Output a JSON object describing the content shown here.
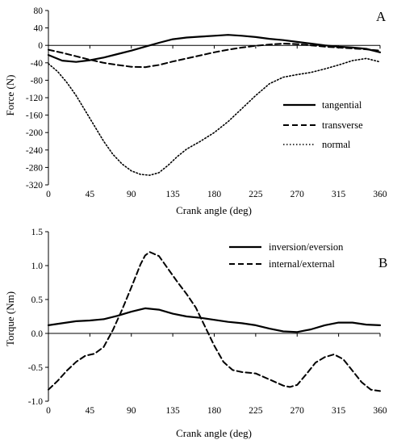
{
  "chart_data": [
    {
      "panel_label": "A",
      "type": "line",
      "xlabel": "Crank angle (deg)",
      "ylabel": "Force (N)",
      "xlim": [
        0,
        360
      ],
      "ylim": [
        -320,
        80
      ],
      "xticks": [
        0,
        45,
        90,
        135,
        180,
        225,
        270,
        315,
        360
      ],
      "yticks": [
        80,
        40,
        0,
        -40,
        -80,
        -120,
        -160,
        -200,
        -240,
        -280,
        -320
      ],
      "legend_position": "right",
      "series": [
        {
          "name": "tangential",
          "style": "solid",
          "x": [
            0,
            15,
            30,
            45,
            60,
            75,
            90,
            105,
            120,
            135,
            150,
            165,
            180,
            195,
            210,
            225,
            240,
            255,
            270,
            285,
            300,
            315,
            330,
            345,
            360
          ],
          "y": [
            -22,
            -35,
            -38,
            -34,
            -28,
            -20,
            -12,
            -3,
            6,
            14,
            18,
            20,
            22,
            24,
            22,
            19,
            15,
            12,
            8,
            4,
            0,
            -3,
            -5,
            -8,
            -16
          ]
        },
        {
          "name": "transverse",
          "style": "dashed",
          "x": [
            0,
            15,
            30,
            45,
            60,
            75,
            90,
            105,
            120,
            135,
            150,
            165,
            180,
            195,
            210,
            225,
            240,
            255,
            270,
            285,
            300,
            315,
            330,
            345,
            360
          ],
          "y": [
            -10,
            -17,
            -25,
            -33,
            -40,
            -45,
            -49,
            -50,
            -45,
            -37,
            -30,
            -23,
            -16,
            -10,
            -5,
            -1,
            2,
            4,
            3,
            0,
            -3,
            -5,
            -7,
            -9,
            -12
          ]
        },
        {
          "name": "normal",
          "style": "dotted",
          "x": [
            0,
            10,
            20,
            30,
            40,
            50,
            60,
            70,
            80,
            90,
            100,
            110,
            120,
            130,
            140,
            150,
            165,
            180,
            195,
            210,
            225,
            240,
            255,
            270,
            285,
            300,
            315,
            330,
            345,
            360
          ],
          "y": [
            -42,
            -60,
            -85,
            -115,
            -150,
            -185,
            -220,
            -250,
            -272,
            -288,
            -296,
            -298,
            -292,
            -275,
            -255,
            -238,
            -220,
            -200,
            -175,
            -145,
            -115,
            -88,
            -73,
            -67,
            -62,
            -54,
            -45,
            -35,
            -30,
            -38
          ]
        }
      ]
    },
    {
      "panel_label": "B",
      "type": "line",
      "xlabel": "Crank angle (deg)",
      "ylabel": "Torque (Nm)",
      "xlim": [
        0,
        360
      ],
      "ylim": [
        -1.0,
        1.5
      ],
      "xticks": [
        0,
        45,
        90,
        135,
        180,
        225,
        270,
        315,
        360
      ],
      "yticks": [
        1.5,
        1.0,
        0.5,
        0.0,
        -0.5,
        -1.0
      ],
      "legend_position": "top-right",
      "series": [
        {
          "name": "inversion/eversion",
          "style": "solid",
          "x": [
            0,
            15,
            30,
            45,
            60,
            75,
            90,
            105,
            120,
            135,
            150,
            165,
            180,
            195,
            210,
            225,
            240,
            255,
            270,
            285,
            300,
            315,
            330,
            345,
            360
          ],
          "y": [
            0.12,
            0.15,
            0.18,
            0.19,
            0.21,
            0.26,
            0.32,
            0.37,
            0.35,
            0.29,
            0.25,
            0.23,
            0.2,
            0.17,
            0.15,
            0.12,
            0.07,
            0.03,
            0.02,
            0.06,
            0.12,
            0.16,
            0.16,
            0.13,
            0.12
          ]
        },
        {
          "name": "internal/external",
          "style": "dashed",
          "x": [
            0,
            10,
            20,
            30,
            40,
            50,
            60,
            70,
            80,
            90,
            100,
            105,
            110,
            120,
            130,
            140,
            150,
            160,
            170,
            180,
            190,
            200,
            210,
            225,
            240,
            255,
            262,
            270,
            280,
            290,
            300,
            310,
            320,
            330,
            340,
            350,
            360
          ],
          "y": [
            -0.83,
            -0.7,
            -0.55,
            -0.42,
            -0.33,
            -0.3,
            -0.2,
            0.05,
            0.35,
            0.68,
            1.02,
            1.15,
            1.2,
            1.14,
            0.95,
            0.76,
            0.58,
            0.38,
            0.1,
            -0.18,
            -0.42,
            -0.54,
            -0.57,
            -0.59,
            -0.68,
            -0.77,
            -0.79,
            -0.76,
            -0.6,
            -0.43,
            -0.35,
            -0.31,
            -0.38,
            -0.55,
            -0.72,
            -0.83,
            -0.85
          ]
        }
      ]
    }
  ]
}
